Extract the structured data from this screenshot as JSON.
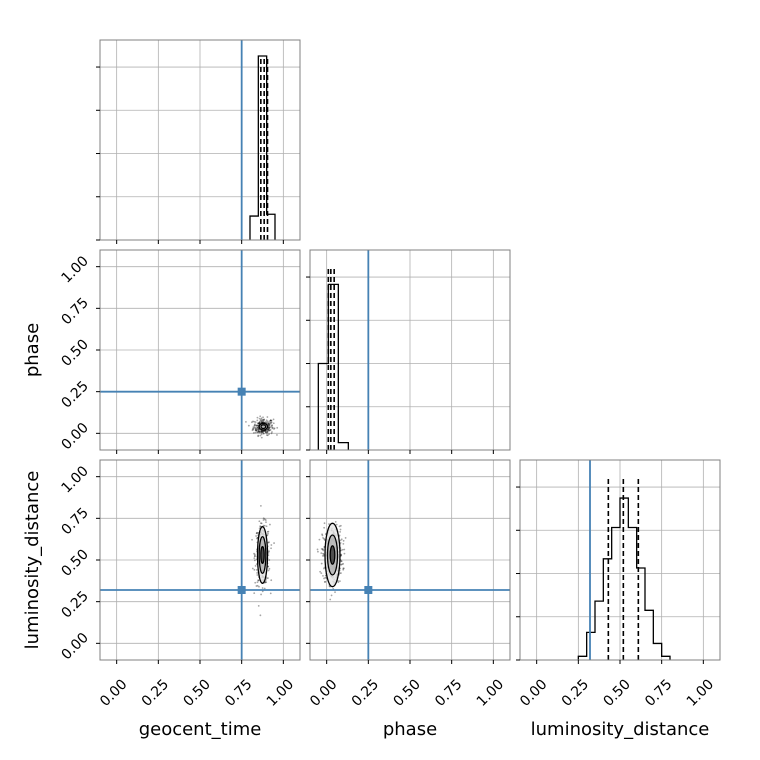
{
  "chart_data": {
    "type": "corner",
    "parameters": [
      "geocent_time",
      "phase",
      "luminosity_distance"
    ],
    "truths": {
      "geocent_time": 0.75,
      "phase": 0.25,
      "luminosity_distance": 0.32
    },
    "truth_color": "#4682b4",
    "axis_range": [
      -0.1,
      1.1
    ],
    "tick_values": [
      0.0,
      0.25,
      0.5,
      0.75,
      1.0
    ],
    "tick_labels": [
      "0.00",
      "0.25",
      "0.50",
      "0.75",
      "1.00"
    ],
    "grid": true,
    "histograms": {
      "geocent_time": {
        "bin_edges": [
          0.8,
          0.85,
          0.9,
          0.95
        ],
        "heights": [
          0.13,
          1.0,
          0.14
        ],
        "quantiles": [
          0.865,
          0.885,
          0.905
        ]
      },
      "phase": {
        "bin_edges": [
          -0.05,
          0.01,
          0.07,
          0.13
        ],
        "heights": [
          0.47,
          0.9,
          0.04
        ],
        "quantiles": [
          0.01,
          0.025,
          0.045
        ]
      },
      "luminosity_distance": {
        "bin_edges": [
          0.25,
          0.3,
          0.35,
          0.4,
          0.45,
          0.5,
          0.55,
          0.6,
          0.65,
          0.7,
          0.75,
          0.8
        ],
        "heights": [
          0.02,
          0.15,
          0.32,
          0.55,
          0.72,
          0.88,
          0.72,
          0.5,
          0.27,
          0.09,
          0.02
        ],
        "quantiles": [
          0.43,
          0.52,
          0.61
        ]
      }
    },
    "joint_panels": [
      {
        "x": "geocent_time",
        "y": "phase",
        "center": [
          0.88,
          0.04
        ],
        "spread": [
          0.03,
          0.025
        ],
        "n": 260,
        "contours": [
          [
            0.025,
            0.02
          ],
          [
            0.014,
            0.011
          ]
        ]
      },
      {
        "x": "geocent_time",
        "y": "luminosity_distance",
        "center": [
          0.875,
          0.53
        ],
        "spread": [
          0.022,
          0.09
        ],
        "n": 340,
        "contours": [
          [
            0.03,
            0.17
          ],
          [
            0.02,
            0.11
          ],
          [
            0.01,
            0.05
          ]
        ]
      },
      {
        "x": "phase",
        "y": "luminosity_distance",
        "center": [
          0.035,
          0.53
        ],
        "spread": [
          0.03,
          0.085
        ],
        "n": 420,
        "contours": [
          [
            0.045,
            0.19
          ],
          [
            0.03,
            0.12
          ],
          [
            0.014,
            0.055
          ]
        ]
      }
    ]
  }
}
